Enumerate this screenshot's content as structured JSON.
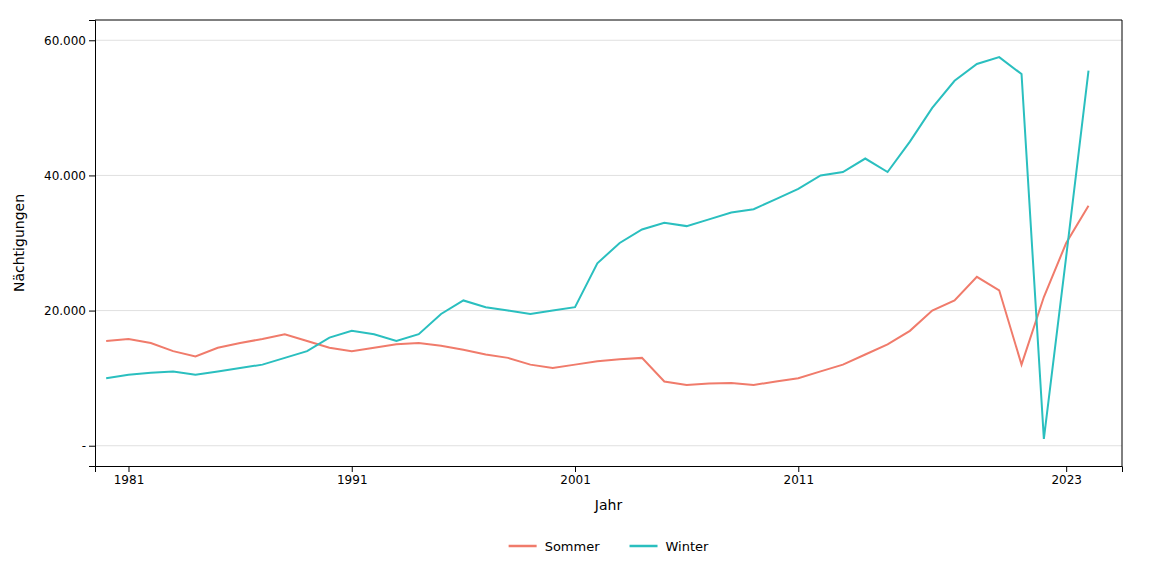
{
  "chart_data": {
    "type": "line",
    "xlabel": "Jahr",
    "ylabel": "Nächtigungen",
    "x": [
      1980,
      1981,
      1982,
      1983,
      1984,
      1985,
      1986,
      1987,
      1988,
      1989,
      1990,
      1991,
      1992,
      1993,
      1994,
      1995,
      1996,
      1997,
      1998,
      1999,
      2000,
      2001,
      2002,
      2003,
      2004,
      2005,
      2006,
      2007,
      2008,
      2009,
      2010,
      2011,
      2012,
      2013,
      2014,
      2015,
      2016,
      2017,
      2018,
      2019,
      2020,
      2021,
      2022,
      2023,
      2024
    ],
    "series": [
      {
        "name": "Sommer",
        "color": "#F07B6B",
        "values": [
          15500,
          15800,
          15200,
          14000,
          13200,
          14500,
          15200,
          15800,
          16500,
          15500,
          14500,
          14000,
          14500,
          15000,
          15200,
          14800,
          14200,
          13500,
          13000,
          12000,
          11500,
          12000,
          12500,
          12800,
          13000,
          9500,
          9000,
          9200,
          9300,
          9000,
          9500,
          10000,
          11000,
          12000,
          13500,
          15000,
          17000,
          20000,
          21500,
          25000,
          23000,
          12000,
          22000,
          30000,
          35500
        ]
      },
      {
        "name": "Winter",
        "color": "#2ABFBF",
        "values": [
          10000,
          10500,
          10800,
          11000,
          10500,
          11000,
          11500,
          12000,
          13000,
          14000,
          16000,
          17000,
          16500,
          15500,
          16500,
          19500,
          21500,
          20500,
          20000,
          19500,
          20000,
          20500,
          27000,
          30000,
          32000,
          33000,
          32500,
          33500,
          34500,
          35000,
          36500,
          38000,
          40000,
          40500,
          42500,
          40500,
          45000,
          50000,
          54000,
          56500,
          57500,
          55000,
          1000,
          28000,
          55500
        ]
      }
    ],
    "xlim": [
      1979.5,
      2025.5
    ],
    "xticks": [
      1981,
      1991,
      2001,
      2011,
      2023
    ],
    "ylim": [
      -3000,
      63000
    ],
    "yticks": [
      {
        "value": 0,
        "label": "-"
      },
      {
        "value": 20000,
        "label": "20.000"
      },
      {
        "value": 40000,
        "label": "40.000"
      },
      {
        "value": 60000,
        "label": "60.000"
      }
    ],
    "grid": "y",
    "legend": "bottom"
  }
}
